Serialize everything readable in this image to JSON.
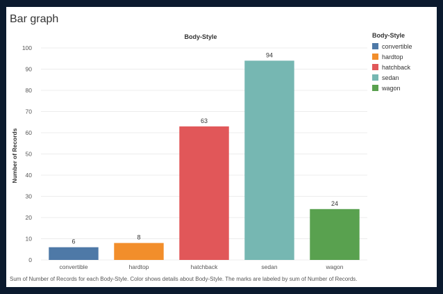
{
  "page": {
    "title": "Bar graph",
    "footer": "Sum of Number of Records for each Body-Style.  Color shows details about Body-Style.  The marks are labeled by sum of Number of Records."
  },
  "chart_data": {
    "type": "bar",
    "title": "Body-Style",
    "xlabel": "",
    "ylabel": "Number of Records",
    "categories": [
      "convertible",
      "hardtop",
      "hatchback",
      "sedan",
      "wagon"
    ],
    "values": [
      6,
      8,
      63,
      94,
      24
    ],
    "colors": [
      "#4e79a7",
      "#f28e2b",
      "#e15759",
      "#76b7b2",
      "#59a14f"
    ],
    "ylim": [
      0,
      100
    ],
    "yticks": [
      0,
      10,
      20,
      30,
      40,
      50,
      60,
      70,
      80,
      90,
      100
    ],
    "grid": true,
    "legend": {
      "title": "Body-Style",
      "position": "right",
      "items": [
        {
          "label": "convertible",
          "color": "#4e79a7"
        },
        {
          "label": "hardtop",
          "color": "#f28e2b"
        },
        {
          "label": "hatchback",
          "color": "#e15759"
        },
        {
          "label": "sedan",
          "color": "#76b7b2"
        },
        {
          "label": "wagon",
          "color": "#59a14f"
        }
      ]
    }
  }
}
